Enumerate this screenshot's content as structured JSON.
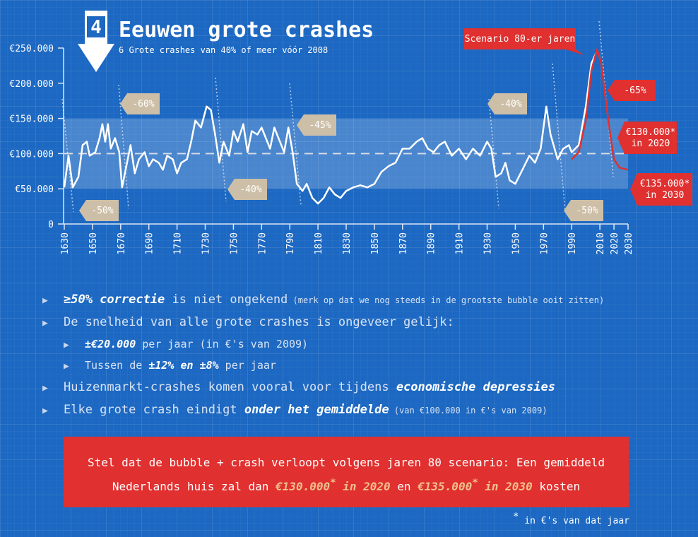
{
  "badge": "4",
  "chart_data": {
    "type": "line",
    "title": "Eeuwen grote crashes",
    "subtitle": "6 Grote crashes van 40% of meer vóór 2008",
    "xlim": [
      1630,
      2030
    ],
    "xticks": [
      1630,
      1650,
      1670,
      1690,
      1710,
      1730,
      1750,
      1770,
      1790,
      1810,
      1830,
      1850,
      1870,
      1890,
      1910,
      1930,
      1950,
      1970,
      1990,
      2010,
      2020,
      2030
    ],
    "ylim": [
      0,
      250000
    ],
    "yticks": [
      0,
      {
        "value": 50000,
        "label": "€50.000"
      },
      {
        "value": 100000,
        "label": "€100.000"
      },
      {
        "value": 150000,
        "label": "€150.000"
      },
      {
        "value": 200000,
        "label": "€200.000"
      },
      {
        "value": 250000,
        "label": "€250.000"
      }
    ],
    "band": [
      50000,
      150000
    ],
    "reference_line": 100000,
    "series": [
      {
        "color": "#ffffff",
        "x": [
          1630,
          1633,
          1636,
          1640,
          1643,
          1646,
          1648,
          1652,
          1655,
          1657,
          1659,
          1661,
          1663,
          1666,
          1669,
          1671,
          1674,
          1677,
          1680,
          1683,
          1687,
          1690,
          1693,
          1697,
          1700,
          1703,
          1707,
          1710,
          1713,
          1717,
          1720,
          1723,
          1727,
          1731,
          1734,
          1737,
          1740,
          1743,
          1747,
          1750,
          1753,
          1757,
          1760,
          1763,
          1767,
          1770,
          1773,
          1776,
          1779,
          1782,
          1786,
          1789,
          1792,
          1795,
          1799,
          1802,
          1806,
          1810,
          1814,
          1818,
          1822,
          1826,
          1830,
          1835,
          1840,
          1845,
          1850,
          1855,
          1860,
          1865,
          1870,
          1875,
          1880,
          1884,
          1888,
          1892,
          1896,
          1900,
          1905,
          1910,
          1915,
          1920,
          1925,
          1930,
          1933,
          1936,
          1940,
          1943,
          1946,
          1950,
          1955,
          1960,
          1964,
          1968,
          1972,
          1975,
          1980,
          1984,
          1988,
          1990,
          1995,
          2000,
          2004,
          2008
        ],
        "values": [
          52000,
          97000,
          52000,
          67000,
          112000,
          117000,
          97000,
          102000,
          122000,
          142000,
          117000,
          142000,
          107000,
          122000,
          102000,
          52000,
          82000,
          112000,
          72000,
          92000,
          102000,
          82000,
          92000,
          87000,
          77000,
          97000,
          92000,
          72000,
          87000,
          92000,
          117000,
          147000,
          137000,
          167000,
          162000,
          127000,
          87000,
          117000,
          97000,
          132000,
          117000,
          142000,
          102000,
          132000,
          127000,
          137000,
          122000,
          107000,
          137000,
          122000,
          102000,
          137000,
          102000,
          57000,
          47000,
          57000,
          37000,
          29000,
          37000,
          52000,
          42000,
          37000,
          47000,
          52000,
          55000,
          52000,
          57000,
          74000,
          82000,
          87000,
          107000,
          107000,
          117000,
          122000,
          107000,
          102000,
          112000,
          117000,
          97000,
          107000,
          92000,
          107000,
          97000,
          117000,
          107000,
          67000,
          72000,
          87000,
          62000,
          57000,
          77000,
          97000,
          87000,
          107000,
          167000,
          127000,
          92000,
          107000,
          112000,
          102000,
          112000,
          167000,
          228000,
          246000
        ]
      },
      {
        "color": "#e0302f",
        "x": [
          1990,
          1995,
          2000,
          2004,
          2008,
          2011,
          2014,
          2017,
          2020,
          2024,
          2030
        ],
        "values": [
          92000,
          102000,
          147000,
          218000,
          248000,
          228000,
          178000,
          132000,
          92000,
          80000,
          77000
        ]
      }
    ],
    "annotations": [
      {
        "lines": [
          "-50%"
        ],
        "style": "tan"
      },
      {
        "lines": [
          "-60%"
        ],
        "style": "tan"
      },
      {
        "lines": [
          "-40%"
        ],
        "style": "tan"
      },
      {
        "lines": [
          "-45%"
        ],
        "style": "tan"
      },
      {
        "lines": [
          "-40%"
        ],
        "style": "tan"
      },
      {
        "lines": [
          "-50%"
        ],
        "style": "tan"
      },
      {
        "lines": [
          "Scenario 80-er jaren"
        ],
        "style": "red"
      },
      {
        "lines": [
          "-65%"
        ],
        "style": "red"
      },
      {
        "lines": [
          "€130.000*",
          "in 2020"
        ],
        "style": "red"
      },
      {
        "lines": [
          "€135.000*",
          "in 2030"
        ],
        "style": "red"
      }
    ]
  },
  "bullets": [
    {
      "level": 1,
      "parts": [
        {
          "text": "≥50% correctie",
          "em": true
        },
        {
          "text": " is niet ongekend"
        },
        {
          "text": " (merk op dat we nog steeds in de grootste bubble ooit zitten)",
          "small": true
        }
      ]
    },
    {
      "level": 1,
      "parts": [
        {
          "text": "De snelheid van alle grote crashes is ongeveer gelijk:"
        }
      ]
    },
    {
      "level": 2,
      "parts": [
        {
          "text": "±€20.000",
          "em": true
        },
        {
          "text": " per jaar (in €'s van 2009)"
        }
      ]
    },
    {
      "level": 2,
      "parts": [
        {
          "text": "Tussen de "
        },
        {
          "text": "±12%",
          "em": true
        },
        {
          "text": " en ",
          "em": true
        },
        {
          "text": "±8%",
          "em": true
        },
        {
          "text": " per jaar"
        }
      ]
    },
    {
      "level": 1,
      "parts": [
        {
          "text": "Huizenmarkt-crashes komen vooral voor tijdens "
        },
        {
          "text": "economische depressies",
          "em": true
        }
      ]
    },
    {
      "level": 1,
      "parts": [
        {
          "text": "Elke grote crash eindigt "
        },
        {
          "text": "onder het gemiddelde",
          "em": true
        },
        {
          "text": " (van €100.000 in €'s van 2009)",
          "small": true
        }
      ]
    }
  ],
  "box": [
    [
      {
        "text": "Stel dat de bubble + crash verloopt volgens jaren 80 scenario: Een gemiddeld"
      }
    ],
    [
      {
        "text": "Nederlands huis zal dan "
      },
      {
        "text": "€130.000",
        "em": true
      },
      {
        "text": "*",
        "em": true,
        "sup": true
      },
      {
        "text": " in 2020",
        "em": true
      },
      {
        "text": " en "
      },
      {
        "text": "€135.000",
        "em": true
      },
      {
        "text": "*",
        "em": true,
        "sup": true
      },
      {
        "text": " in 2030",
        "em": true
      },
      {
        "text": " kosten"
      }
    ]
  ],
  "footnote": [
    {
      "text": "*",
      "sup": true
    },
    {
      "text": " in €'s van dat jaar"
    }
  ]
}
